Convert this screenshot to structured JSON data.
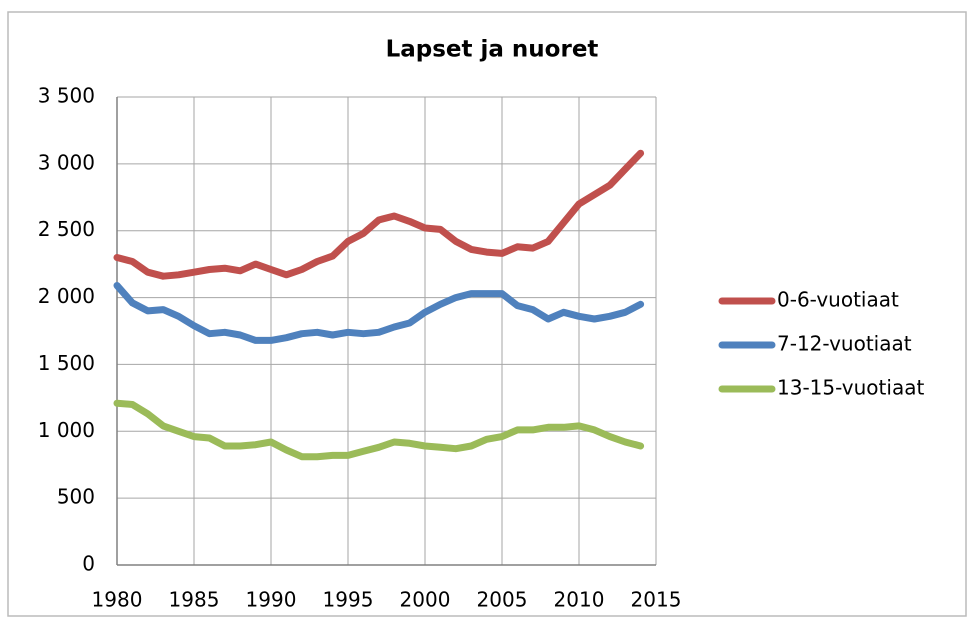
{
  "chart_data": {
    "type": "line",
    "title": "Lapset ja nuoret",
    "x": [
      1980,
      1981,
      1982,
      1983,
      1984,
      1985,
      1986,
      1987,
      1988,
      1989,
      1990,
      1991,
      1992,
      1993,
      1994,
      1995,
      1996,
      1997,
      1998,
      1999,
      2000,
      2001,
      2002,
      2003,
      2004,
      2005,
      2006,
      2007,
      2008,
      2009,
      2010,
      2011,
      2012,
      2013,
      2014
    ],
    "series": [
      {
        "name": "0-6-vuotiaat",
        "color": "#c0504d",
        "values": [
          2300,
          2270,
          2190,
          2160,
          2170,
          2190,
          2210,
          2220,
          2200,
          2250,
          2210,
          2170,
          2210,
          2270,
          2310,
          2420,
          2480,
          2580,
          2610,
          2570,
          2520,
          2510,
          2420,
          2360,
          2340,
          2330,
          2380,
          2370,
          2420,
          2560,
          2700,
          2770,
          2840,
          2960,
          3080
        ]
      },
      {
        "name": "7-12-vuotiaat",
        "color": "#4f81bd",
        "values": [
          2090,
          1960,
          1900,
          1910,
          1860,
          1790,
          1730,
          1740,
          1720,
          1680,
          1680,
          1700,
          1730,
          1740,
          1720,
          1740,
          1730,
          1740,
          1780,
          1810,
          1890,
          1950,
          2000,
          2030,
          2030,
          2030,
          1940,
          1910,
          1840,
          1890,
          1860,
          1840,
          1860,
          1890,
          1950
        ]
      },
      {
        "name": "13-15-vuotiaat",
        "color": "#9bbb59",
        "values": [
          1210,
          1200,
          1130,
          1040,
          1000,
          960,
          950,
          890,
          890,
          900,
          920,
          860,
          810,
          810,
          820,
          820,
          850,
          880,
          920,
          910,
          890,
          880,
          870,
          890,
          940,
          960,
          1010,
          1010,
          1030,
          1030,
          1040,
          1010,
          960,
          920,
          890
        ]
      }
    ],
    "xlim": [
      1980,
      2015
    ],
    "xticks": [
      1980,
      1985,
      1990,
      1995,
      2000,
      2005,
      2010,
      2015
    ],
    "ylim": [
      0,
      3500
    ],
    "yticks": [
      0,
      500,
      {
        "value": 1000,
        "label": "1 000"
      },
      {
        "value": 1500,
        "label": "1 500"
      },
      {
        "value": 2000,
        "label": "2 000"
      },
      {
        "value": 2500,
        "label": "2 500"
      },
      {
        "value": 3000,
        "label": "3 000"
      },
      {
        "value": 3500,
        "label": "3 500"
      }
    ],
    "grid": true,
    "legend": "right"
  }
}
